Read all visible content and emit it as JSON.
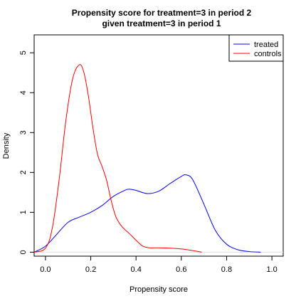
{
  "chart_data": {
    "type": "line",
    "title": [
      "Propensity score for treatment=3 in period 2",
      "given treatment=3 in period 1"
    ],
    "xlabel": "Propensity score",
    "ylabel": "Density",
    "xlim": [
      -0.05,
      1.05
    ],
    "ylim": [
      -0.1,
      5.45
    ],
    "xticks": [
      0.0,
      0.2,
      0.4,
      0.6,
      0.8,
      1.0
    ],
    "xtick_labels": [
      "0.0",
      "0.2",
      "0.4",
      "0.6",
      "0.8",
      "1.0"
    ],
    "yticks": [
      0,
      1,
      2,
      3,
      4,
      5
    ],
    "ytick_labels": [
      "0",
      "1",
      "2",
      "3",
      "4",
      "5"
    ],
    "grid": false,
    "legend_position": "top-right",
    "series": [
      {
        "name": "treated",
        "color": "#0000ff",
        "x": [
          -0.05,
          0.0,
          0.05,
          0.1,
          0.15,
          0.2,
          0.25,
          0.3,
          0.35,
          0.37,
          0.4,
          0.45,
          0.5,
          0.55,
          0.6,
          0.62,
          0.65,
          0.7,
          0.75,
          0.8,
          0.85,
          0.9,
          0.95
        ],
        "y": [
          0.0,
          0.15,
          0.45,
          0.75,
          0.88,
          1.0,
          1.17,
          1.4,
          1.55,
          1.58,
          1.55,
          1.47,
          1.53,
          1.72,
          1.9,
          1.94,
          1.82,
          1.2,
          0.55,
          0.2,
          0.06,
          0.015,
          0.0
        ]
      },
      {
        "name": "controls",
        "color": "#ff0000",
        "x": [
          -0.05,
          0.0,
          0.03,
          0.06,
          0.09,
          0.12,
          0.15,
          0.17,
          0.19,
          0.21,
          0.23,
          0.25,
          0.27,
          0.29,
          0.31,
          0.33,
          0.35,
          0.37,
          0.4,
          0.43,
          0.46,
          0.5,
          0.55,
          0.6,
          0.65,
          0.69
        ],
        "y": [
          0.0,
          0.1,
          0.6,
          1.8,
          3.3,
          4.35,
          4.7,
          4.5,
          3.9,
          3.1,
          2.45,
          2.15,
          1.8,
          1.3,
          0.9,
          0.7,
          0.57,
          0.47,
          0.3,
          0.15,
          0.11,
          0.11,
          0.1,
          0.08,
          0.04,
          0.0
        ]
      }
    ]
  }
}
